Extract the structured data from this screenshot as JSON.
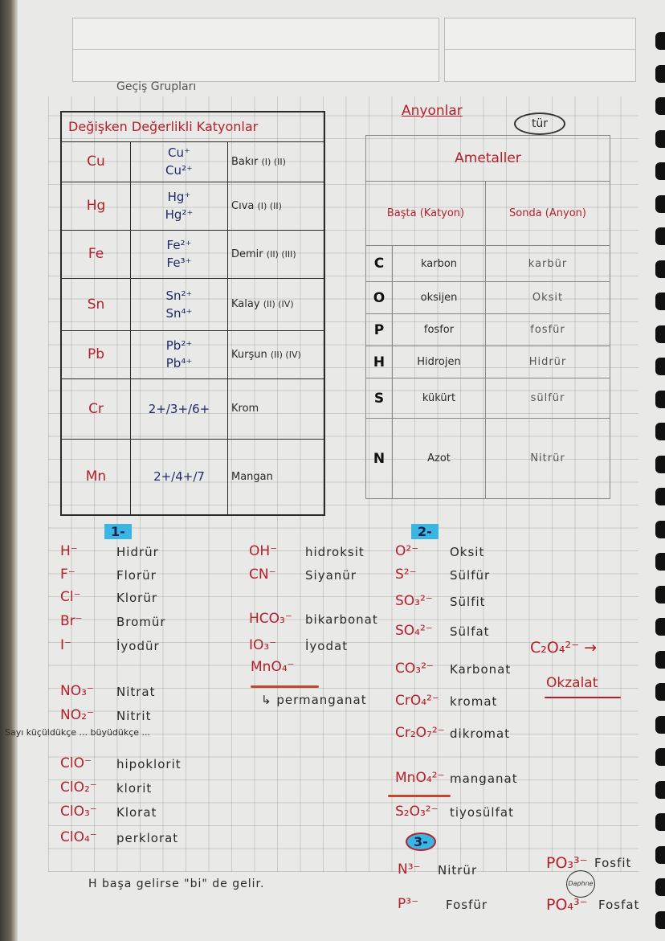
{
  "left": {
    "title": "Geçiş Grupları",
    "table_header": "Değişken Değerlikli Katyonlar",
    "rows": [
      {
        "symbol": "Cu",
        "ions": [
          "Cu⁺",
          "Cu²⁺"
        ],
        "name": "Bakır",
        "valences": "(I) (II)"
      },
      {
        "symbol": "Hg",
        "ions": [
          "Hg⁺",
          "Hg²⁺"
        ],
        "name": "Cıva",
        "valences": "(I) (II)"
      },
      {
        "symbol": "Fe",
        "ions": [
          "Fe²⁺",
          "Fe³⁺"
        ],
        "name": "Demir",
        "valences": "(II) (III)"
      },
      {
        "symbol": "Sn",
        "ions": [
          "Sn²⁺",
          "Sn⁴⁺"
        ],
        "name": "Kalay",
        "valences": "(II) (IV)"
      },
      {
        "symbol": "Pb",
        "ions": [
          "Pb²⁺",
          "Pb⁴⁺"
        ],
        "name": "Kurşun",
        "valences": "(II) (IV)"
      },
      {
        "symbol": "Cr",
        "ions": [
          "2+/3+/6+"
        ],
        "name": "Krom",
        "valences": ""
      },
      {
        "symbol": "Mn",
        "ions": [
          "2+/4+/7"
        ],
        "name": "Mangan",
        "valences": ""
      }
    ]
  },
  "right": {
    "title": "Anyonlar",
    "circled": "tür",
    "table_header": "Ametaller",
    "col1": "Başta (Katyon)",
    "col2": "Sonda (Anyon)",
    "rows": [
      {
        "symbol": "C",
        "start": "karbon",
        "end": "karbür"
      },
      {
        "symbol": "O",
        "start": "oksijen",
        "end": "Oksit"
      },
      {
        "symbol": "P",
        "start": "fosfor",
        "end": "fosfür"
      },
      {
        "symbol": "H",
        "start": "Hidrojen",
        "end": "Hidrür"
      },
      {
        "symbol": "S",
        "start": "kükürt",
        "end": "sülfür"
      },
      {
        "symbol": "N",
        "start": "Azot",
        "end": "Nitrür"
      }
    ]
  },
  "charge1": {
    "badge": "1-",
    "col_a": [
      {
        "f": "H⁻",
        "n": "Hidrür"
      },
      {
        "f": "F⁻",
        "n": "Florür"
      },
      {
        "f": "Cl⁻",
        "n": "Klorür"
      },
      {
        "f": "Br⁻",
        "n": "Bromür"
      },
      {
        "f": "I⁻",
        "n": "İyodür"
      },
      {
        "f": "NO₃⁻",
        "n": "Nitrat"
      },
      {
        "f": "NO₂⁻",
        "n": "Nitrit"
      },
      {
        "f": "ClO⁻",
        "n": "hipoklorit"
      },
      {
        "f": "ClO₂⁻",
        "n": "klorit"
      },
      {
        "f": "ClO₃⁻",
        "n": "Klorat"
      },
      {
        "f": "ClO₄⁻",
        "n": "perklorat"
      }
    ],
    "col_b": [
      {
        "f": "OH⁻",
        "n": "hidroksit"
      },
      {
        "f": "CN⁻",
        "n": "Siyanür"
      },
      {
        "f": "HCO₃⁻",
        "n": "bikarbonat"
      },
      {
        "f": "IO₃⁻",
        "n": "İyodat"
      },
      {
        "f": "MnO₄⁻",
        "n": "↳ permanganat"
      }
    ],
    "note": "Sayı küçüldükçe ... büyüdükçe ...",
    "footer": "H başa gelirse \"bi\" de gelir."
  },
  "charge2": {
    "badge": "2-",
    "items": [
      {
        "f": "O²⁻",
        "n": "Oksit"
      },
      {
        "f": "S²⁻",
        "n": "Sülfür"
      },
      {
        "f": "SO₃²⁻",
        "n": "Sülfit"
      },
      {
        "f": "SO₄²⁻",
        "n": "Sülfat"
      },
      {
        "f": "CO₃²⁻",
        "n": "Karbonat"
      },
      {
        "f": "CrO₄²⁻",
        "n": "kromat"
      },
      {
        "f": "Cr₂O₇²⁻",
        "n": "dikromat"
      },
      {
        "f": "MnO₄²⁻",
        "n": "manganat"
      },
      {
        "f": "S₂O₃²⁻",
        "n": "tiyosülfat"
      }
    ],
    "oxalate": {
      "f": "C₂O₄²⁻ →",
      "n": "Okzalat"
    }
  },
  "charge3": {
    "badge": "3-",
    "items": [
      {
        "f": "N³⁻",
        "n": "Nitrür"
      },
      {
        "f": "P³⁻",
        "n": "Fosfür"
      }
    ],
    "extra": [
      {
        "f": "PO₃³⁻",
        "n": "Fosfit"
      },
      {
        "f": "PO₄³⁻",
        "n": "Fosfat"
      }
    ]
  },
  "logo": "Daphne",
  "colors": {
    "red_ink": "#b3202c",
    "blue_ink": "#1f2a6b",
    "highlighter": "#3bb6e2",
    "paper": "#e9e9e7"
  }
}
